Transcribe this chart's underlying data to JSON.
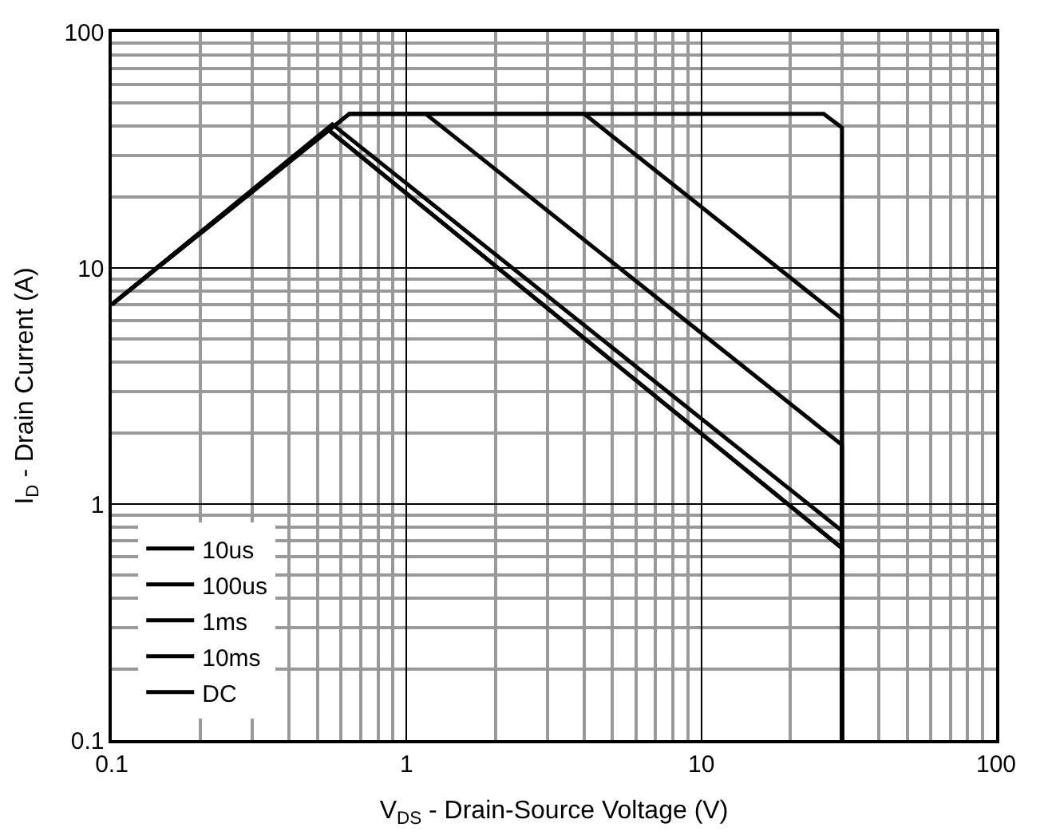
{
  "chart_data": {
    "type": "line",
    "xlabel": "V$_{DS}$ - Drain-Source Voltage (V)",
    "ylabel": "I$_{D}$ - Drain Current (A)",
    "log": "xy",
    "grid": true,
    "legend": "bottom left",
    "marker": "none",
    "line_style": "solid",
    "xlim": [
      0.1,
      100
    ],
    "ylim": [
      0.1,
      100
    ],
    "xticks": [
      0.1,
      1,
      10,
      100
    ],
    "yticks": [
      0.1,
      1,
      10,
      100
    ],
    "series": [
      {
        "name": "10us",
        "color": "#000000",
        "x": [
          0.1,
          0.64,
          4.0,
          30,
          30
        ],
        "values": [
          7,
          45,
          45,
          6.1,
          0.1
        ]
      },
      {
        "name": "100us",
        "color": "#000000",
        "x": [
          0.1,
          0.64,
          1.16,
          30,
          30
        ],
        "values": [
          7,
          45,
          45,
          1.78,
          0.1
        ]
      },
      {
        "name": "1ms",
        "color": "#000000",
        "x": [
          0.1,
          0.56,
          30,
          30
        ],
        "values": [
          7,
          40.6,
          0.77,
          0.1
        ]
      },
      {
        "name": "10ms",
        "color": "#000000",
        "x": [
          0.1,
          0.54,
          30,
          30
        ],
        "values": [
          7,
          38.7,
          0.65,
          0.1
        ]
      },
      {
        "name": "DC",
        "color": "#000000",
        "x": [
          0.1,
          0.54,
          30,
          30
        ],
        "values": [
          7,
          38.7,
          0.65,
          0.1
        ]
      },
      {
        "color": "#000000",
        "x": [
          0.64,
          26,
          30,
          30
        ],
        "values": [
          45,
          45,
          39.3,
          0.1
        ]
      }
    ]
  }
}
